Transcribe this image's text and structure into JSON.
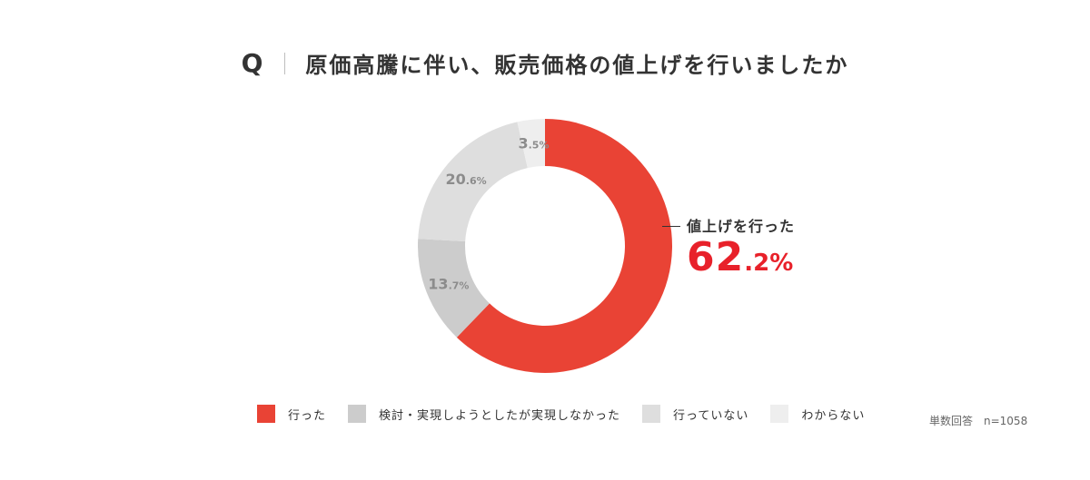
{
  "question": {
    "marker": "Q",
    "text": "原価高騰に伴い、販売価格の値上げを行いましたか"
  },
  "callout": {
    "label": "値上げを行った",
    "value_big": "62",
    "value_small": ".2%"
  },
  "sample_note": "単数回答　n=1058",
  "colors": {
    "did_raise": "#e94335",
    "considered": "#cccccc",
    "not_raise": "#dedede",
    "unknown": "#eeeeee",
    "slice_label": "#8c8c8c",
    "callout_value": "#e8212a"
  },
  "chart_data": {
    "type": "pie",
    "donut": true,
    "start_angle": "top",
    "direction": "clockwise",
    "categories": [
      "行った",
      "検討・実現しようとしたが実現しなかった",
      "行っていない",
      "わからない"
    ],
    "values": [
      62.2,
      13.7,
      20.6,
      3.5
    ],
    "unit": "%",
    "slice_labels": [
      {
        "big": "",
        "small": ""
      },
      {
        "big": "13",
        "small": ".7%"
      },
      {
        "big": "20",
        "small": ".6%"
      },
      {
        "big": "3",
        "small": ".5%"
      }
    ],
    "legend_placement": "bottom",
    "n": 1058
  }
}
